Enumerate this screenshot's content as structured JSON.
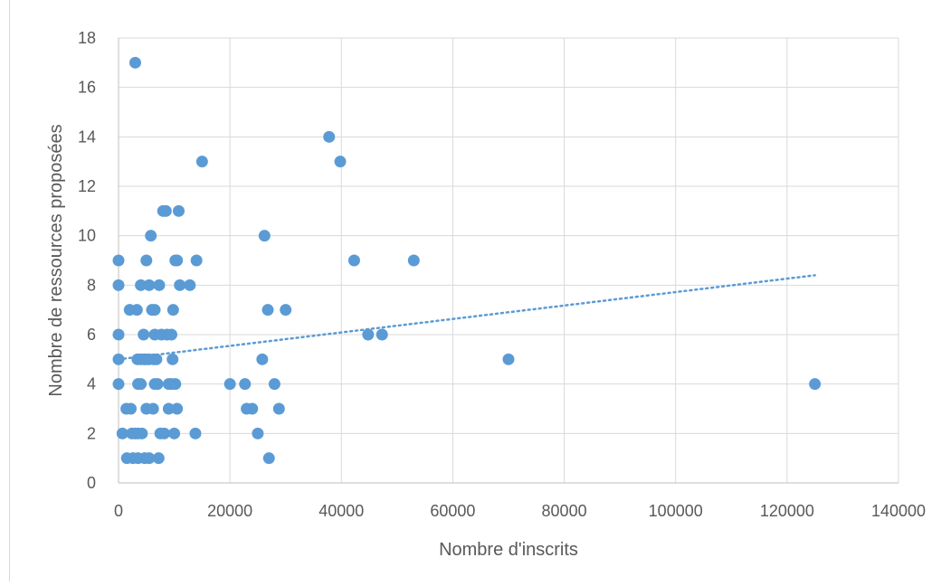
{
  "chart_data": {
    "type": "scatter",
    "title": "",
    "xlabel": "Nombre d'inscrits",
    "ylabel": "Nombre de ressources proposées",
    "xlim": [
      0,
      140000
    ],
    "ylim": [
      0,
      18
    ],
    "x_ticks": [
      "0",
      "20000",
      "40000",
      "60000",
      "80000",
      "100000",
      "120000",
      "140000"
    ],
    "y_ticks": [
      "0",
      "2",
      "4",
      "6",
      "8",
      "10",
      "12",
      "14",
      "16",
      "18"
    ],
    "grid": true,
    "legend": "none",
    "colors": {
      "points": "#5b9bd5",
      "trendline": "#5b9bd5",
      "grid": "#d9d9d9",
      "axis": "#bfbfbf"
    },
    "trendline": {
      "type": "linear",
      "dotted": true,
      "x": [
        0,
        125000
      ],
      "y": [
        5.0,
        8.4
      ]
    },
    "points": [
      [
        0,
        9
      ],
      [
        0,
        8
      ],
      [
        0,
        6
      ],
      [
        0,
        5
      ],
      [
        0,
        4
      ],
      [
        700,
        2
      ],
      [
        1400,
        3
      ],
      [
        1500,
        1
      ],
      [
        2000,
        7
      ],
      [
        2200,
        3
      ],
      [
        2400,
        2
      ],
      [
        2600,
        1
      ],
      [
        3000,
        17
      ],
      [
        3000,
        2
      ],
      [
        3300,
        7
      ],
      [
        3400,
        5
      ],
      [
        3500,
        4
      ],
      [
        3500,
        2
      ],
      [
        3500,
        1
      ],
      [
        4000,
        8
      ],
      [
        4000,
        5
      ],
      [
        4000,
        4
      ],
      [
        4200,
        2
      ],
      [
        4500,
        6
      ],
      [
        4600,
        5
      ],
      [
        4700,
        1
      ],
      [
        5000,
        9
      ],
      [
        5000,
        5
      ],
      [
        5000,
        3
      ],
      [
        5500,
        8
      ],
      [
        5500,
        5
      ],
      [
        5500,
        1
      ],
      [
        5800,
        10
      ],
      [
        6000,
        7
      ],
      [
        6200,
        3
      ],
      [
        6300,
        5
      ],
      [
        6500,
        7
      ],
      [
        6500,
        6
      ],
      [
        6500,
        4
      ],
      [
        6800,
        5
      ],
      [
        7000,
        4
      ],
      [
        7200,
        1
      ],
      [
        7300,
        8
      ],
      [
        7500,
        2
      ],
      [
        7700,
        6
      ],
      [
        8000,
        11
      ],
      [
        8200,
        2
      ],
      [
        8500,
        11
      ],
      [
        8700,
        6
      ],
      [
        9000,
        4
      ],
      [
        9000,
        3
      ],
      [
        9500,
        6
      ],
      [
        9500,
        4
      ],
      [
        9700,
        5
      ],
      [
        9800,
        7
      ],
      [
        10000,
        2
      ],
      [
        10200,
        9
      ],
      [
        10200,
        4
      ],
      [
        10500,
        3
      ],
      [
        10500,
        9
      ],
      [
        10800,
        11
      ],
      [
        11000,
        8
      ],
      [
        12800,
        8
      ],
      [
        14000,
        9
      ],
      [
        13800,
        2
      ],
      [
        15000,
        13
      ],
      [
        20000,
        4
      ],
      [
        22700,
        4
      ],
      [
        23000,
        3
      ],
      [
        24000,
        3
      ],
      [
        25000,
        2
      ],
      [
        25800,
        5
      ],
      [
        26200,
        10
      ],
      [
        26800,
        7
      ],
      [
        27000,
        1
      ],
      [
        28000,
        4
      ],
      [
        28800,
        3
      ],
      [
        30000,
        7
      ],
      [
        37800,
        14
      ],
      [
        39800,
        13
      ],
      [
        42300,
        9
      ],
      [
        44800,
        6
      ],
      [
        47300,
        6
      ],
      [
        53000,
        9
      ],
      [
        70000,
        5
      ],
      [
        125000,
        4
      ]
    ]
  }
}
